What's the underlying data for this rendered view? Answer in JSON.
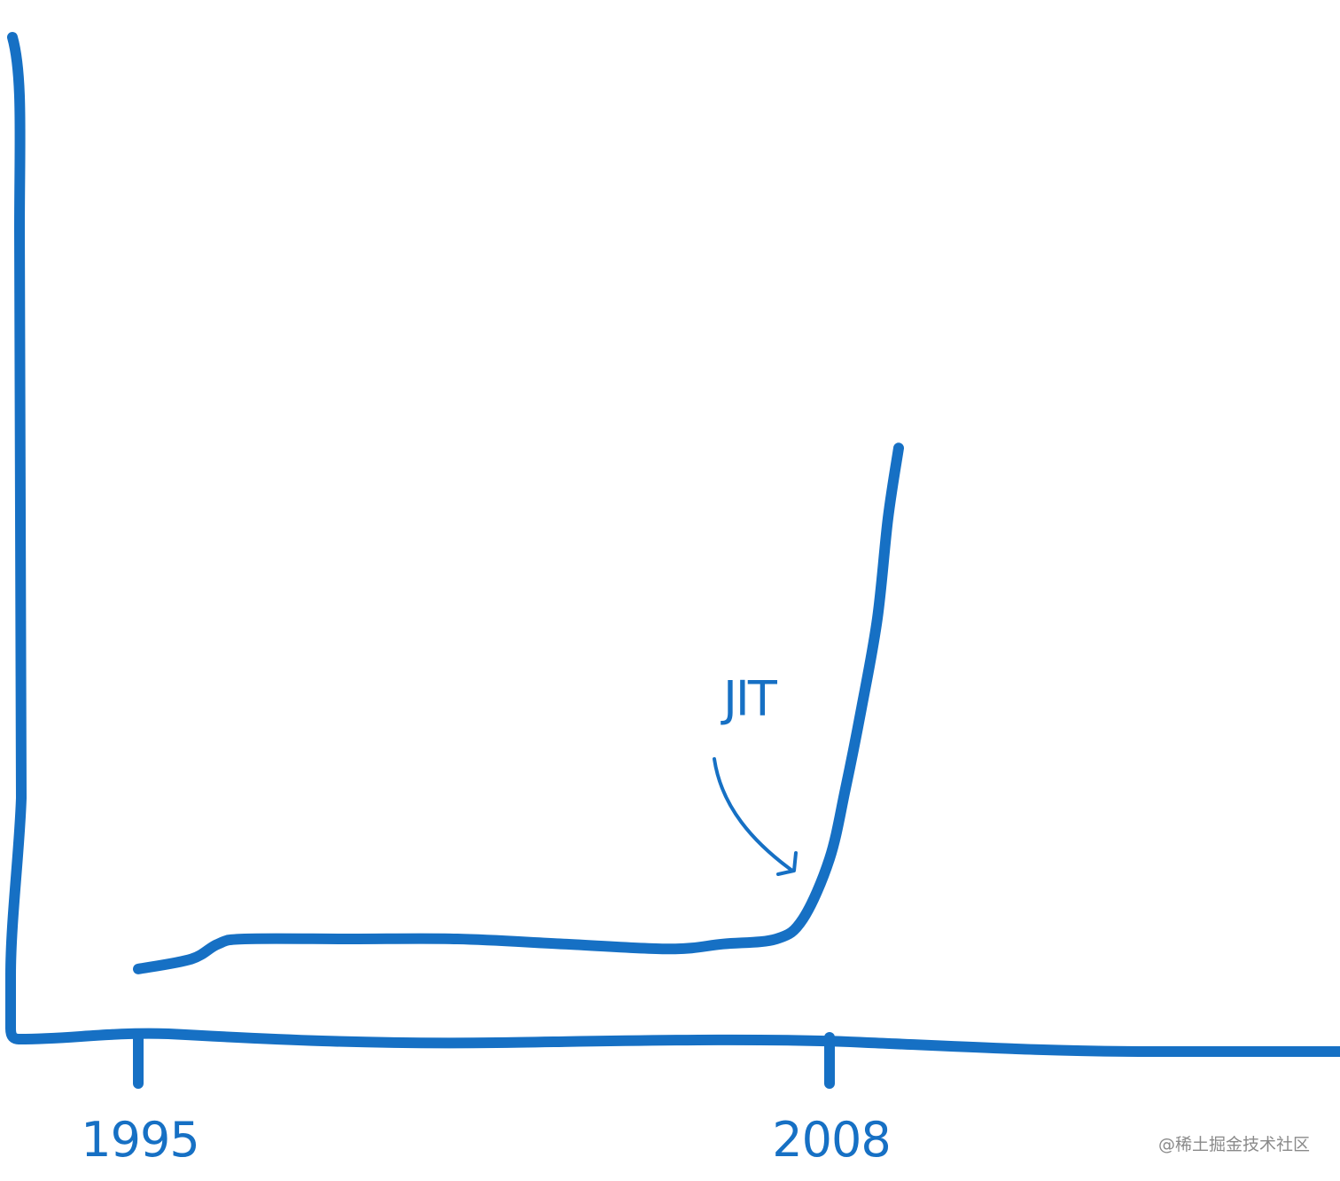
{
  "watermark": "@稀土掘金技术社区",
  "colors": {
    "ink": "#1670c4",
    "background": "#ffffff",
    "watermark": "#8a8a8a"
  },
  "chart_data": {
    "type": "line",
    "title": "",
    "xlabel": "",
    "ylabel": "",
    "x_ticks": [
      {
        "value": 1995,
        "label": "1995"
      },
      {
        "value": 2008,
        "label": "2008"
      }
    ],
    "xlim": [
      1992.6,
      2017.6
    ],
    "ylim": [
      0,
      100
    ],
    "grid": false,
    "series": [
      {
        "x": [
          1995,
          1996,
          1996.5,
          1997,
          1999,
          2001,
          2003,
          2005,
          2006,
          2007,
          2007.5,
          2008,
          2008.3,
          2008.6,
          2008.9,
          2009.1,
          2009.3
        ],
        "values": [
          7,
          8,
          9.5,
          10,
          10,
          10,
          9.5,
          9,
          9.5,
          10,
          12,
          18,
          25,
          33,
          42,
          52,
          59
        ]
      }
    ],
    "annotations": [
      {
        "text": "JIT",
        "x": 2007.9,
        "y": 15
      }
    ]
  }
}
